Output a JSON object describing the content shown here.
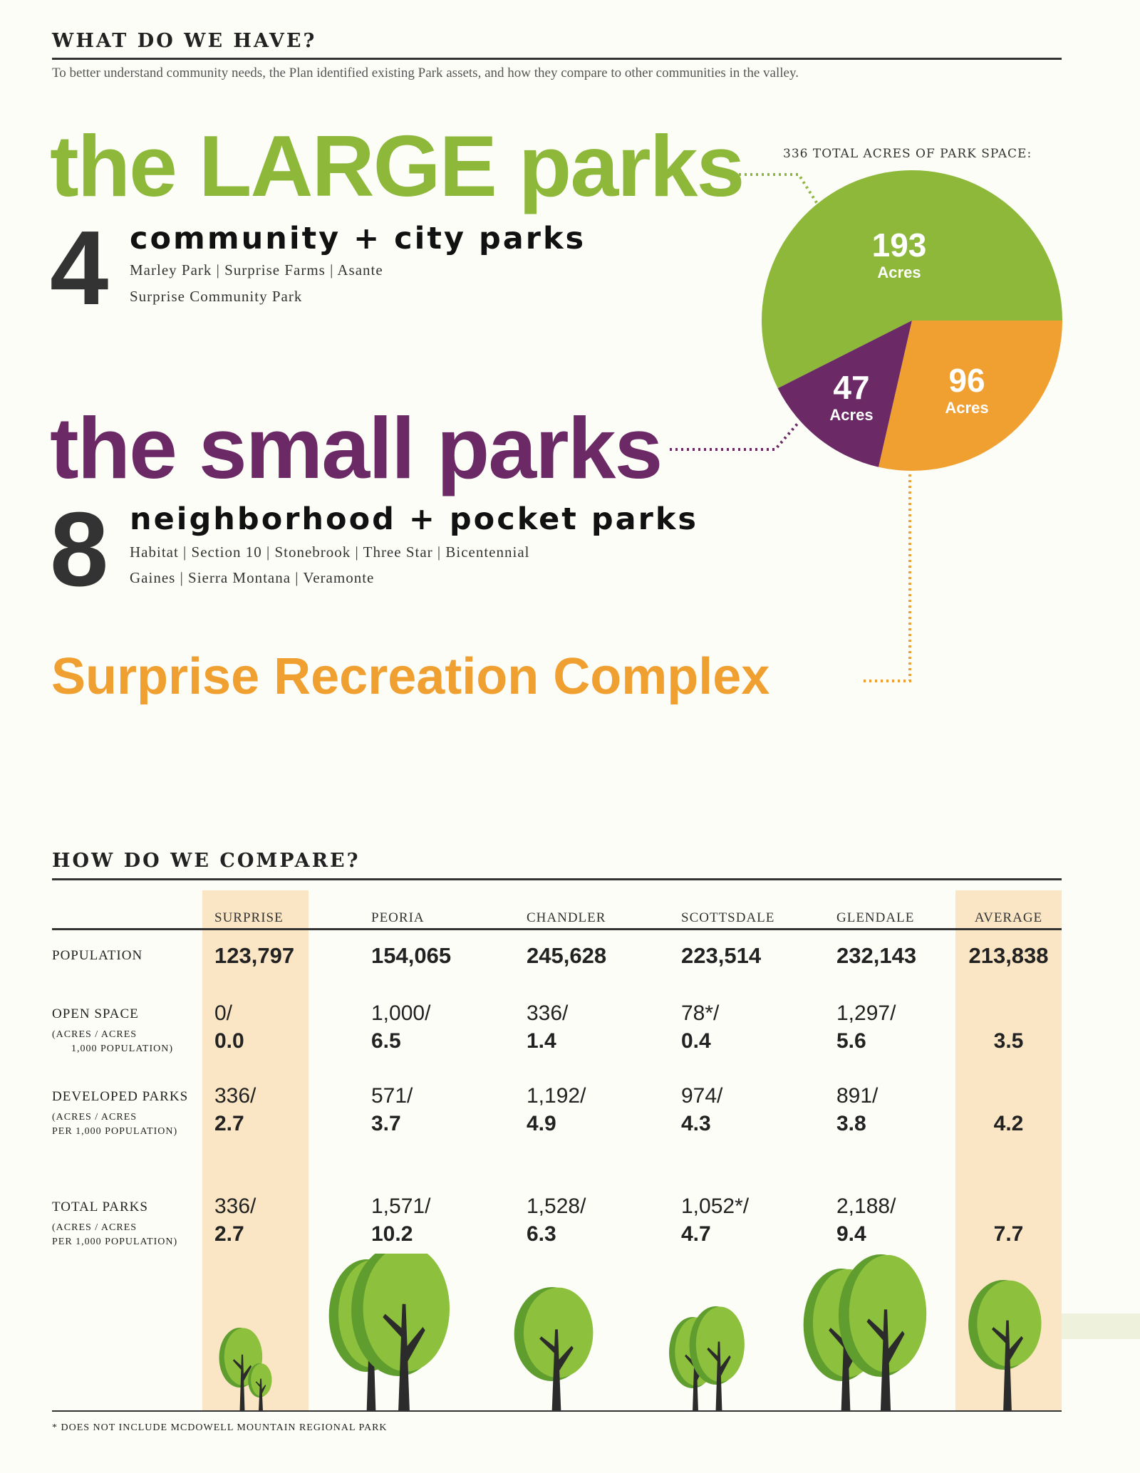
{
  "colors": {
    "green": "#8db83a",
    "purple": "#6b2a66",
    "orange": "#f0a030",
    "highlight": "#fae6c4"
  },
  "section1": {
    "title": "WHAT DO WE HAVE?",
    "subtitle": "To better understand community needs, the Plan identified existing Park assets, and how they compare to other communities in the valley."
  },
  "large": {
    "heading": "the LARGE parks",
    "count": "4",
    "kind": "community + city parks",
    "list1": "Marley Park | Surprise Farms | Asante",
    "list2": "Surprise Community Park"
  },
  "small": {
    "heading": "the small parks",
    "count": "8",
    "kind": "neighborhood + pocket parks",
    "list1": "Habitat | Section 10 | Stonebrook | Three Star | Bicentennial",
    "list2": "Gaines | Sierra Montana | Veramonte"
  },
  "complex": {
    "heading": "Surprise Recreation Complex"
  },
  "chart_data": {
    "type": "pie",
    "title": "336 TOTAL ACRES OF PARK SPACE:",
    "slices": [
      {
        "label": "Acres",
        "value": 193,
        "color": "#8db83a",
        "links_to": "the LARGE parks"
      },
      {
        "label": "Acres",
        "value": 47,
        "color": "#6b2a66",
        "links_to": "the small parks"
      },
      {
        "label": "Acres",
        "value": 96,
        "color": "#f0a030",
        "links_to": "Surprise Recreation Complex"
      }
    ]
  },
  "section2": {
    "title": "HOW DO WE COMPARE?",
    "columns": [
      "SURPRISE",
      "PEORIA",
      "CHANDLER",
      "SCOTTSDALE",
      "GLENDALE",
      "AVERAGE"
    ],
    "rows": [
      {
        "label": "POPULATION",
        "sub1": "",
        "sub2": "",
        "top": [
          "123,797",
          "154,065",
          "245,628",
          "223,514",
          "232,143",
          "213,838"
        ],
        "bottom": [
          "",
          "",
          "",
          "",
          "",
          ""
        ]
      },
      {
        "label": "OPEN SPACE",
        "sub1": "(ACRES / ACRES",
        "sub2": "1,000 POPULATION)",
        "top": [
          "0/",
          "1,000/",
          "336/",
          "78*/",
          "1,297/",
          ""
        ],
        "bottom": [
          "0.0",
          "6.5",
          "1.4",
          "0.4",
          "5.6",
          "3.5"
        ]
      },
      {
        "label": "DEVELOPED PARKS",
        "sub1": "(ACRES / ACRES",
        "sub2": "PER 1,000 POPULATION)",
        "top": [
          "336/",
          "571/",
          "1,192/",
          "974/",
          "891/",
          ""
        ],
        "bottom": [
          "2.7",
          "3.7",
          "4.9",
          "4.3",
          "3.8",
          "4.2"
        ]
      },
      {
        "label": "TOTAL PARKS",
        "sub1": "(ACRES / ACRES",
        "sub2": "PER 1,000 POPULATION)",
        "top": [
          "336/",
          "1,571/",
          "1,528/",
          "1,052*/",
          "2,188/",
          ""
        ],
        "bottom": [
          "2.7",
          "10.2",
          "6.3",
          "4.7",
          "9.4",
          "7.7"
        ]
      }
    ],
    "footnote": "* DOES NOT INCLUDE MCDOWELL MOUNTAIN REGIONAL PARK"
  }
}
